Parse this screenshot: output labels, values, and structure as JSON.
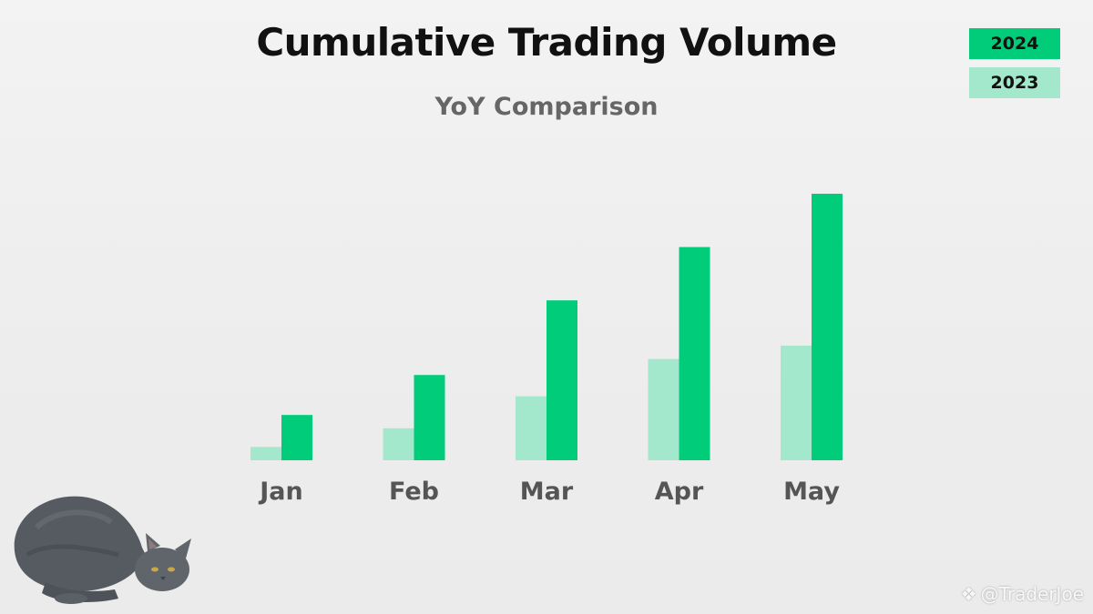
{
  "chart_data": {
    "type": "bar",
    "title": "Cumulative Trading Volume",
    "subtitle": "YoY Comparison",
    "xlabel": "",
    "ylabel": "",
    "categories": [
      "Jan",
      "Feb",
      "Mar",
      "Apr",
      "May"
    ],
    "series": [
      {
        "name": "2023",
        "color": "#a3e8cc",
        "values": [
          5,
          12,
          24,
          38,
          43
        ]
      },
      {
        "name": "2024",
        "color": "#00cc79",
        "values": [
          17,
          32,
          60,
          80,
          100
        ]
      }
    ],
    "ylim": [
      0,
      100
    ],
    "grid": false,
    "legend_position": "top-right",
    "y_axis_shown": false
  },
  "legend": [
    {
      "label": "2024",
      "color": "#00cc79"
    },
    {
      "label": "2023",
      "color": "#a3e8cc"
    }
  ],
  "decoration": {
    "icon": "cat-illustration"
  },
  "watermark": {
    "icon": "binance-diamond-icon",
    "text": "@TraderJoe"
  }
}
